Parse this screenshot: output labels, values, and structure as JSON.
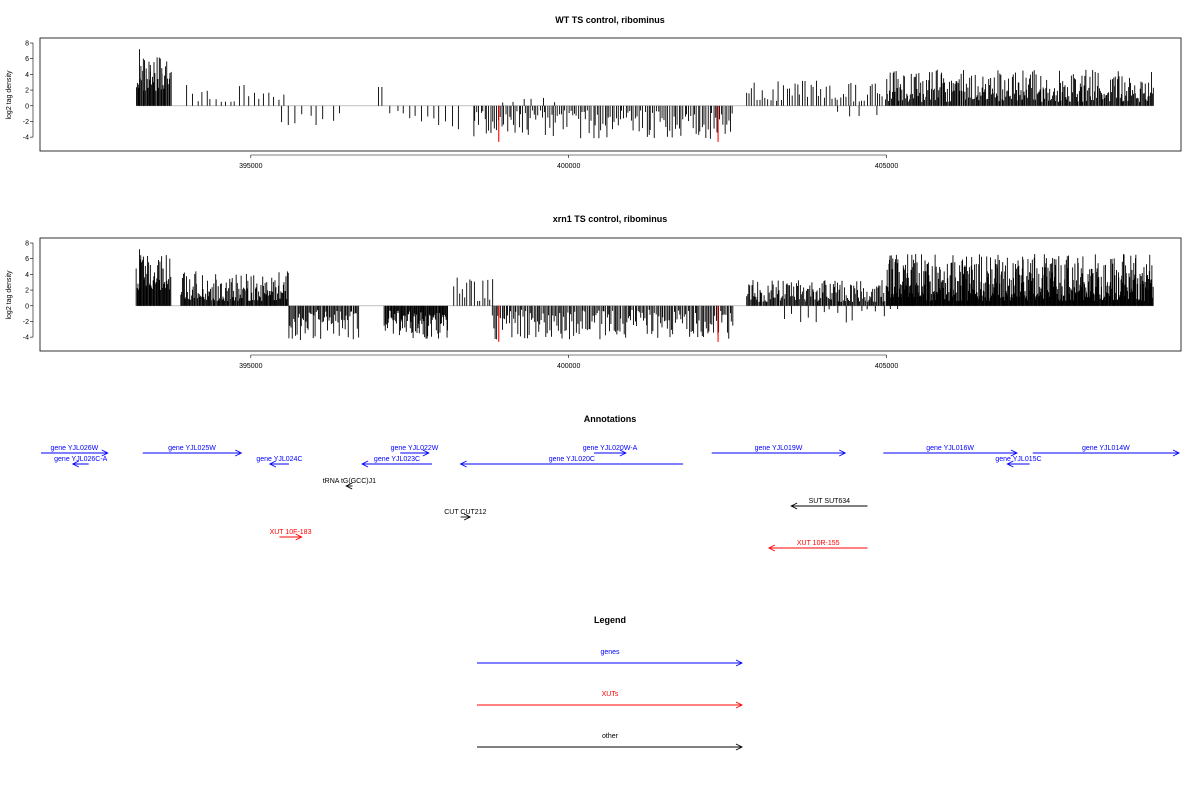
{
  "chart_data": [
    {
      "type": "bar",
      "title": "WT TS control, ribominus",
      "ylabel": "log2 tag density",
      "xlabel": "",
      "xlim": [
        391700,
        409600
      ],
      "ylim": [
        -5,
        8
      ],
      "xticks": [
        "395000",
        "400000",
        "405000"
      ],
      "yticks": [
        "-4",
        "-2",
        "0",
        "2",
        "4",
        "6",
        "8"
      ],
      "highlights": [
        {
          "x": 398900,
          "y": -4.6,
          "color": "#ff0000"
        },
        {
          "x": 402350,
          "y": -4.6,
          "color": "#ff0000"
        }
      ],
      "segments": [
        {
          "from": 393200,
          "to": 393750,
          "step": 14,
          "sign": 1,
          "min": 1.8,
          "max": 6.2
        },
        {
          "from": 394000,
          "to": 395500,
          "step": 75,
          "sign": 1,
          "min": 0.5,
          "max": 2.7
        },
        {
          "from": 395500,
          "to": 396400,
          "step": 110,
          "sign": -1,
          "min": 0.6,
          "max": 2.6
        },
        {
          "from": 397000,
          "to": 397050,
          "step": 50,
          "sign": 1,
          "min": 2.4,
          "max": 2.4
        },
        {
          "from": 397200,
          "to": 398300,
          "step": 95,
          "sign": -1,
          "min": 0.5,
          "max": 3.2
        },
        {
          "from": 398500,
          "to": 402600,
          "step": 30,
          "sign": -1,
          "min": 0.6,
          "max": 4.2
        },
        {
          "from": 399000,
          "to": 399800,
          "step": 150,
          "sign": 1,
          "min": 0.3,
          "max": 1.1
        },
        {
          "from": 402800,
          "to": 405000,
          "step": 42,
          "sign": 1,
          "min": 0.5,
          "max": 3.2
        },
        {
          "from": 404200,
          "to": 404900,
          "step": 200,
          "sign": -1,
          "min": 0.6,
          "max": 1.8
        },
        {
          "from": 405000,
          "to": 409200,
          "step": 15,
          "sign": 1,
          "min": 0.5,
          "max": 4.6
        }
      ]
    },
    {
      "type": "bar",
      "title": "xrn1 TS control, ribominus",
      "ylabel": "log2 tag density",
      "xlabel": "",
      "xlim": [
        391700,
        409600
      ],
      "ylim": [
        -5,
        8
      ],
      "xticks": [
        "395000",
        "400000",
        "405000"
      ],
      "yticks": [
        "-4",
        "-2",
        "0",
        "2",
        "4",
        "6",
        "8"
      ],
      "highlights": [
        {
          "x": 398900,
          "y": -4.6,
          "color": "#ff0000"
        },
        {
          "x": 402350,
          "y": -4.6,
          "color": "#ff0000"
        }
      ],
      "segments": [
        {
          "from": 393200,
          "to": 393750,
          "step": 12,
          "sign": 1,
          "min": 2.0,
          "max": 6.5
        },
        {
          "from": 393900,
          "to": 395600,
          "step": 13,
          "sign": 1,
          "min": 0.6,
          "max": 4.4
        },
        {
          "from": 395600,
          "to": 396700,
          "step": 18,
          "sign": -1,
          "min": 0.5,
          "max": 4.4
        },
        {
          "from": 397100,
          "to": 398100,
          "step": 12,
          "sign": -1,
          "min": 0.6,
          "max": 4.2
        },
        {
          "from": 398200,
          "to": 398800,
          "step": 40,
          "sign": 1,
          "min": 0.6,
          "max": 3.6
        },
        {
          "from": 398800,
          "to": 402600,
          "step": 22,
          "sign": -1,
          "min": 0.5,
          "max": 4.3
        },
        {
          "from": 402800,
          "to": 405000,
          "step": 16,
          "sign": 1,
          "min": 0.5,
          "max": 3.3
        },
        {
          "from": 403400,
          "to": 405200,
          "step": 120,
          "sign": -1,
          "min": 0.4,
          "max": 2.2
        },
        {
          "from": 405000,
          "to": 409200,
          "step": 9,
          "sign": 1,
          "min": 0.6,
          "max": 6.6
        }
      ]
    }
  ],
  "annotations": {
    "title": "Annotations",
    "xlim": [
      391700,
      409600
    ],
    "items": [
      {
        "label": "gene YJL026W",
        "type": "gene",
        "color": "#0000ff",
        "from": 391700,
        "to": 392750,
        "row": 0
      },
      {
        "label": "gene YJL026C-A",
        "type": "gene",
        "color": "#0000ff",
        "from": 392200,
        "to": 392450,
        "row": 1
      },
      {
        "label": "gene YJL025W",
        "type": "gene",
        "color": "#0000ff",
        "from": 393300,
        "to": 394850,
        "row": 0
      },
      {
        "label": "gene YJL024C",
        "type": "gene",
        "color": "#0000ff",
        "from": 395300,
        "to": 395600,
        "row": 1
      },
      {
        "label": "gene YJL023C",
        "type": "gene",
        "color": "#0000ff",
        "from": 396750,
        "to": 397850,
        "row": 1
      },
      {
        "label": "gene YJL022W",
        "type": "gene",
        "color": "#0000ff",
        "from": 397350,
        "to": 397800,
        "row": 0
      },
      {
        "label": "gene YJL020C",
        "type": "gene",
        "color": "#0000ff",
        "from": 398300,
        "to": 401800,
        "row": 1
      },
      {
        "label": "gene YJL020W-A",
        "type": "gene",
        "color": "#0000ff",
        "from": 400400,
        "to": 400900,
        "row": 0
      },
      {
        "label": "gene YJL019W",
        "type": "gene",
        "color": "#0000ff",
        "from": 402250,
        "to": 404350,
        "row": 0
      },
      {
        "label": "gene YJL016W",
        "type": "gene",
        "color": "#0000ff",
        "from": 404950,
        "to": 407050,
        "row": 0
      },
      {
        "label": "gene YJL015C",
        "type": "gene",
        "color": "#0000ff",
        "from": 406900,
        "to": 407250,
        "row": 1
      },
      {
        "label": "gene YJL014W",
        "type": "gene",
        "color": "#0000ff",
        "from": 407300,
        "to": 409600,
        "row": 0
      },
      {
        "label": "tRNA tG(GCC)J1",
        "type": "other",
        "color": "#000000",
        "from": 396500,
        "to": 396600,
        "row": 2
      },
      {
        "label": "CUT CUT212",
        "type": "other",
        "color": "#000000",
        "from": 398300,
        "to": 398450,
        "row": 3
      },
      {
        "label": "SUT SUT634",
        "type": "other",
        "color": "#000000",
        "from": 403500,
        "to": 404700,
        "row": 4
      },
      {
        "label": "XUT 10F-183",
        "type": "XUTs",
        "color": "#ff0000",
        "from": 395450,
        "to": 395800,
        "row": 5
      },
      {
        "label": "XUT 10R-155",
        "type": "XUTs",
        "color": "#ff0000",
        "from": 403150,
        "to": 404700,
        "row": 6
      }
    ]
  },
  "legend": {
    "title": "Legend",
    "entries": [
      {
        "label": "genes",
        "color": "#0000ff"
      },
      {
        "label": "XUTs",
        "color": "#ff0000"
      },
      {
        "label": "other",
        "color": "#000000"
      }
    ]
  }
}
